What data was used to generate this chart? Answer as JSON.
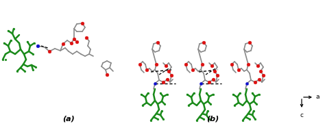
{
  "background_color": "#ffffff",
  "label_a": "(a)",
  "label_b": "(b)",
  "fig_width": 4.74,
  "fig_height": 1.87,
  "dpi": 100,
  "font_size_labels": 8,
  "font_size_axis": 6.5,
  "bond_color_green": "#1a8a1a",
  "bond_color_red": "#dd1111",
  "bond_color_blue": "#1111cc",
  "bond_color_gray": "#888888",
  "bond_color_darkgray": "#555555",
  "dashed_bond_color": "#000000",
  "axis_label_a": "a",
  "axis_label_c": "c",
  "green_lw": 1.8,
  "gray_lw": 1.2,
  "red_ms": 3.5,
  "blue_ms": 3.0,
  "green_ms": 2.0
}
